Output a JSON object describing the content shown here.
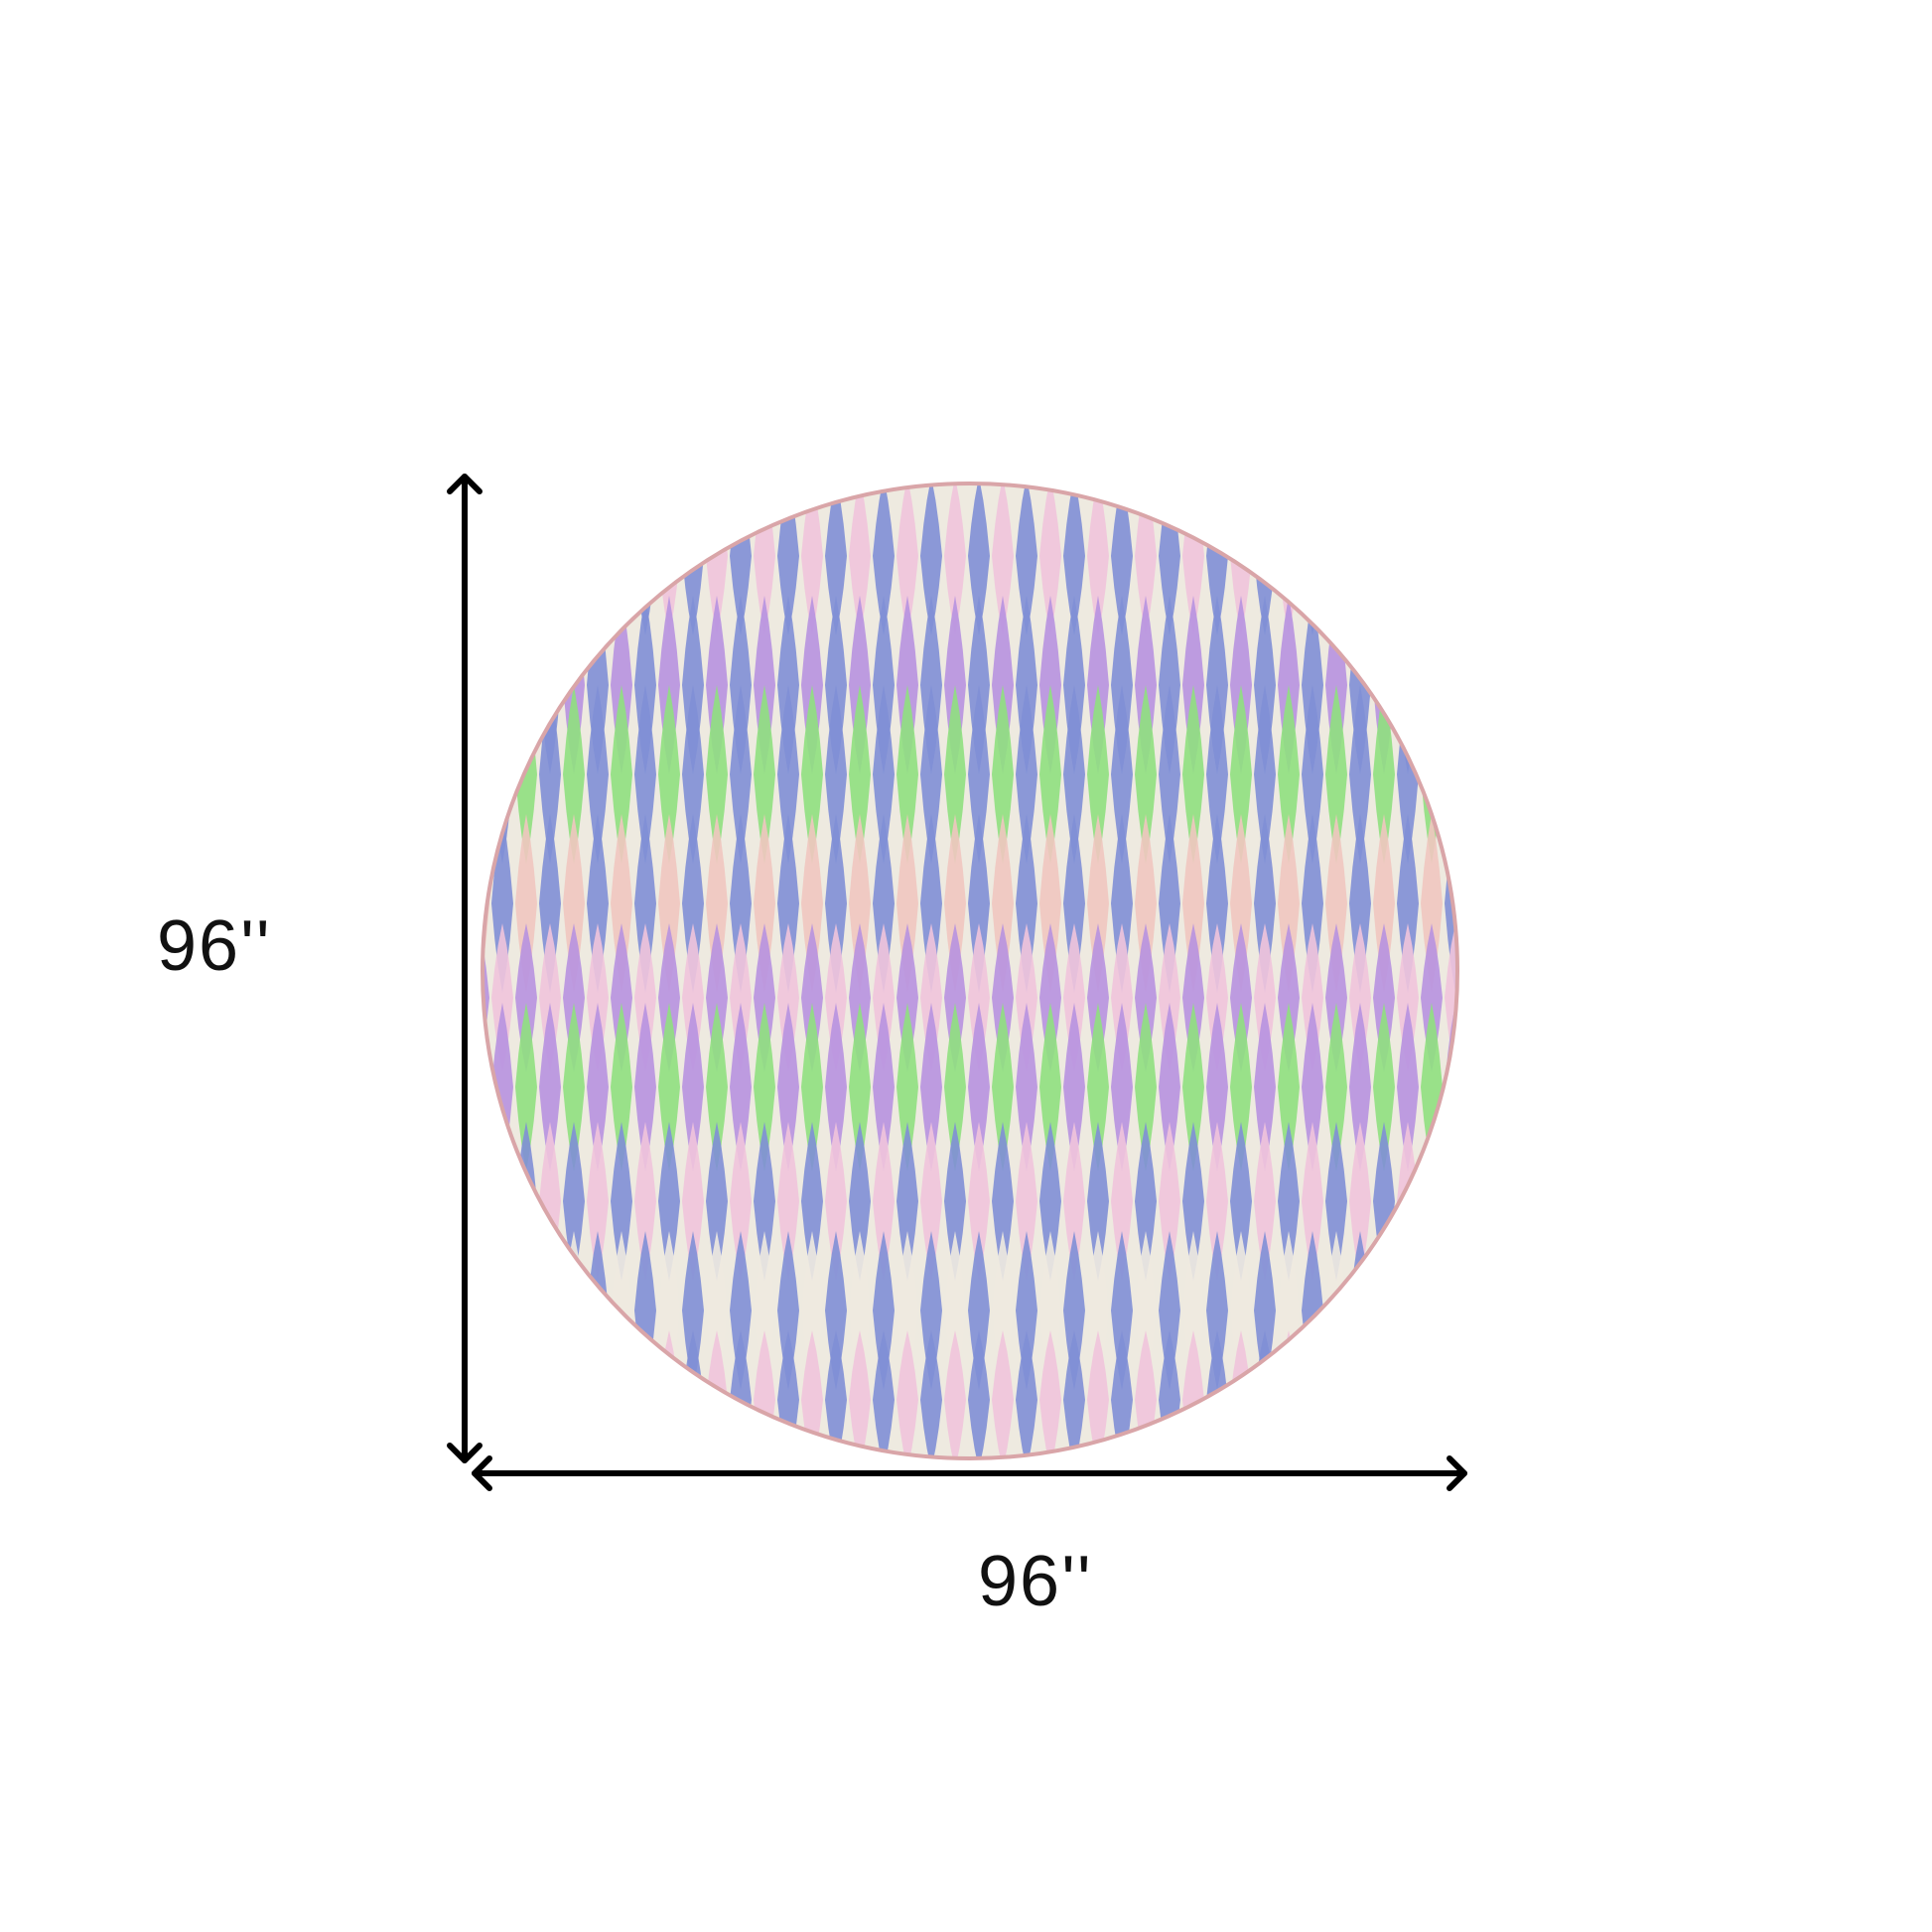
{
  "dimensions": {
    "height_label": "96''",
    "width_label": "96''"
  },
  "rug": {
    "shape": "round",
    "colors": {
      "blue": "#7f8fd6",
      "purple": "#b792e0",
      "pink": "#efc4dc",
      "peach": "#f0c6c0",
      "cream": "#eeeae0",
      "green": "#8fe07f",
      "edge": "#d9a5a8"
    }
  },
  "arrow_color": "#000000"
}
